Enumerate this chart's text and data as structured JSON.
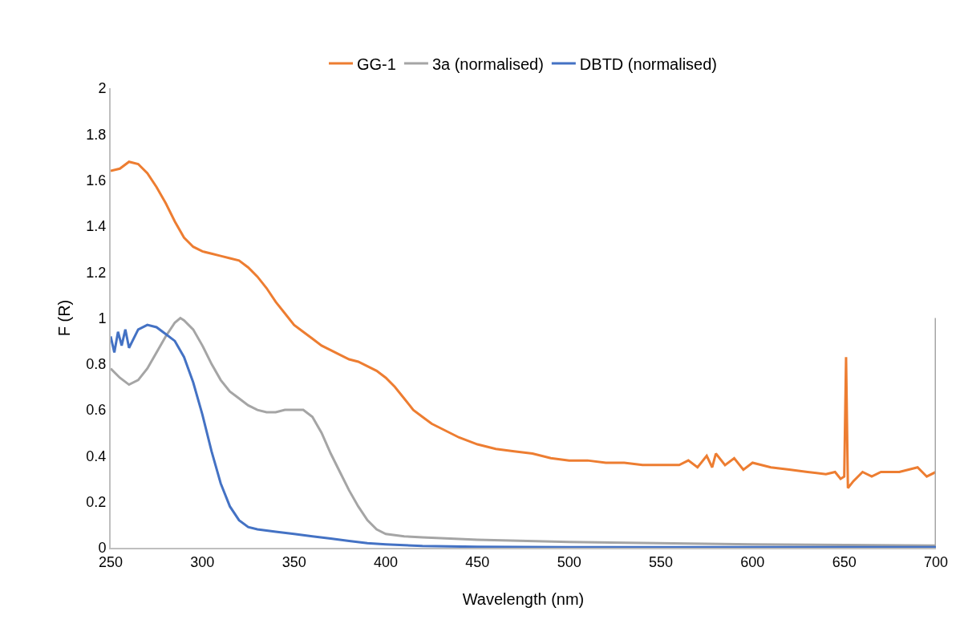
{
  "chart_data": {
    "type": "line",
    "xlabel": "Wavelength (nm)",
    "ylabel": "F (R)",
    "xlim": [
      250,
      700
    ],
    "xticks": [
      250,
      300,
      350,
      400,
      450,
      500,
      550,
      600,
      650,
      700
    ],
    "ylim": [
      0,
      2
    ],
    "yticks": [
      0,
      0.2,
      0.4,
      0.6,
      0.8,
      1,
      1.2,
      1.4,
      1.6,
      1.8,
      2
    ],
    "grid": false,
    "legend": "top",
    "marker": "none",
    "line_style": "solid",
    "series": [
      {
        "name": "GG-1",
        "color": "#ed7d31",
        "x": [
          250,
          255,
          260,
          265,
          270,
          275,
          280,
          285,
          290,
          295,
          300,
          305,
          310,
          315,
          320,
          325,
          330,
          335,
          340,
          345,
          350,
          355,
          360,
          365,
          370,
          375,
          380,
          385,
          390,
          395,
          400,
          405,
          410,
          415,
          420,
          425,
          430,
          435,
          440,
          450,
          460,
          470,
          480,
          490,
          500,
          510,
          520,
          530,
          540,
          550,
          560,
          565,
          570,
          575,
          578,
          580,
          585,
          590,
          595,
          600,
          610,
          620,
          630,
          640,
          645,
          648,
          650,
          651,
          652,
          655,
          660,
          665,
          670,
          680,
          690,
          695,
          700
        ],
        "values": [
          1.64,
          1.65,
          1.68,
          1.67,
          1.63,
          1.57,
          1.5,
          1.42,
          1.35,
          1.31,
          1.29,
          1.28,
          1.27,
          1.26,
          1.25,
          1.22,
          1.18,
          1.13,
          1.07,
          1.02,
          0.97,
          0.94,
          0.91,
          0.88,
          0.86,
          0.84,
          0.82,
          0.81,
          0.79,
          0.77,
          0.74,
          0.7,
          0.65,
          0.6,
          0.57,
          0.54,
          0.52,
          0.5,
          0.48,
          0.45,
          0.43,
          0.42,
          0.41,
          0.39,
          0.38,
          0.38,
          0.37,
          0.37,
          0.36,
          0.36,
          0.36,
          0.38,
          0.35,
          0.4,
          0.35,
          0.41,
          0.36,
          0.39,
          0.34,
          0.37,
          0.35,
          0.34,
          0.33,
          0.32,
          0.33,
          0.3,
          0.31,
          0.83,
          0.26,
          0.29,
          0.33,
          0.31,
          0.33,
          0.33,
          0.35,
          0.31,
          0.33
        ]
      },
      {
        "name": "3a (normalised)",
        "color": "#a5a5a5",
        "x": [
          250,
          255,
          260,
          265,
          270,
          275,
          280,
          285,
          288,
          290,
          295,
          300,
          305,
          310,
          315,
          320,
          325,
          330,
          335,
          340,
          345,
          350,
          355,
          360,
          365,
          370,
          375,
          380,
          385,
          390,
          395,
          400,
          410,
          420,
          450,
          500,
          600,
          700,
          700
        ],
        "values": [
          0.78,
          0.74,
          0.71,
          0.73,
          0.78,
          0.85,
          0.92,
          0.98,
          1.0,
          0.99,
          0.95,
          0.88,
          0.8,
          0.73,
          0.68,
          0.65,
          0.62,
          0.6,
          0.59,
          0.59,
          0.6,
          0.6,
          0.6,
          0.57,
          0.5,
          0.41,
          0.33,
          0.25,
          0.18,
          0.12,
          0.08,
          0.06,
          0.05,
          0.045,
          0.035,
          0.025,
          0.015,
          0.01,
          1.0
        ]
      },
      {
        "name": "DBTD (normalised)",
        "color": "#4472c4",
        "x": [
          250,
          252,
          254,
          256,
          258,
          260,
          265,
          270,
          275,
          280,
          285,
          290,
          295,
          300,
          305,
          310,
          315,
          320,
          325,
          330,
          340,
          350,
          360,
          370,
          380,
          390,
          400,
          420,
          450,
          500,
          600,
          700
        ],
        "values": [
          0.92,
          0.85,
          0.94,
          0.88,
          0.95,
          0.87,
          0.95,
          0.97,
          0.96,
          0.93,
          0.9,
          0.83,
          0.72,
          0.58,
          0.42,
          0.28,
          0.18,
          0.12,
          0.09,
          0.08,
          0.07,
          0.06,
          0.05,
          0.04,
          0.03,
          0.02,
          0.015,
          0.008,
          0.004,
          0.003,
          0.003,
          0.003
        ]
      }
    ]
  }
}
